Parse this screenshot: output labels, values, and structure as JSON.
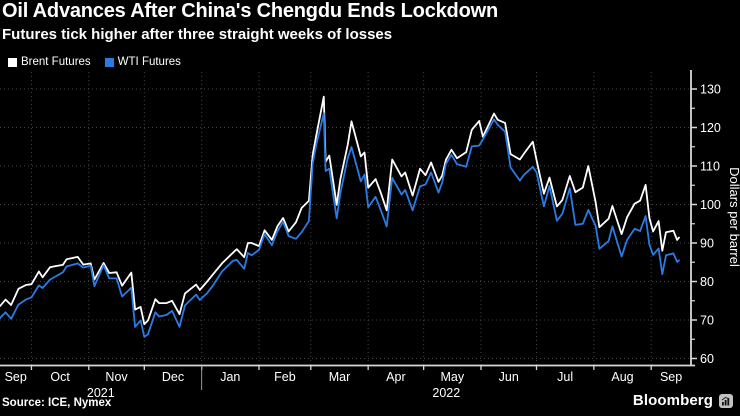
{
  "footer": {
    "source": "Source: ICE, Nymex",
    "brand": "Bloomberg"
  },
  "chart_data": {
    "type": "line",
    "title": "Oil Advances After China's Chengdu Ends Lockdown",
    "subtitle": "Futures tick higher after three straight weeks of losses",
    "ylabel": "Dollars per barrel",
    "ylim": [
      60,
      130
    ],
    "y_ticks": [
      60,
      70,
      80,
      90,
      100,
      110,
      120,
      130
    ],
    "y_minor_ticks": [
      65,
      75,
      85,
      95,
      105,
      115,
      125
    ],
    "x_month_labels": [
      "Sep",
      "Oct",
      "Nov",
      "Dec",
      "Jan",
      "Feb",
      "Mar",
      "Apr",
      "May",
      "Jun",
      "Jul",
      "Aug",
      "Sep"
    ],
    "x_year_labels": [
      "2021",
      "2022"
    ],
    "month_starts": [
      "2021-10-01",
      "2021-11-01",
      "2021-12-01",
      "2022-01-01",
      "2022-02-01",
      "2022-03-01",
      "2022-04-01",
      "2022-05-01",
      "2022-06-01",
      "2022-07-01",
      "2022-08-01",
      "2022-09-01"
    ],
    "x_range": [
      "2021-09-14",
      "2022-09-16"
    ],
    "grid": "dotted",
    "legend_position": "top-left",
    "colors": {
      "background": "#000000",
      "grid": "#454545",
      "axis": "#d8d8d8",
      "text": "#ffffff"
    },
    "dates": [
      "2021-09-14",
      "2021-09-17",
      "2021-09-20",
      "2021-09-24",
      "2021-09-28",
      "2021-10-01",
      "2021-10-05",
      "2021-10-07",
      "2021-10-11",
      "2021-10-14",
      "2021-10-18",
      "2021-10-20",
      "2021-10-26",
      "2021-10-29",
      "2021-11-02",
      "2021-11-04",
      "2021-11-09",
      "2021-11-12",
      "2021-11-16",
      "2021-11-19",
      "2021-11-24",
      "2021-11-26",
      "2021-11-29",
      "2021-12-01",
      "2021-12-03",
      "2021-12-07",
      "2021-12-09",
      "2021-12-13",
      "2021-12-16",
      "2021-12-20",
      "2021-12-23",
      "2021-12-29",
      "2021-12-31",
      "2022-01-04",
      "2022-01-07",
      "2022-01-12",
      "2022-01-18",
      "2022-01-20",
      "2022-01-24",
      "2022-01-26",
      "2022-01-28",
      "2022-02-01",
      "2022-02-04",
      "2022-02-08",
      "2022-02-11",
      "2022-02-14",
      "2022-02-17",
      "2022-02-21",
      "2022-02-24",
      "2022-02-28",
      "2022-03-02",
      "2022-03-04",
      "2022-03-08",
      "2022-03-09",
      "2022-03-11",
      "2022-03-15",
      "2022-03-17",
      "2022-03-21",
      "2022-03-23",
      "2022-03-28",
      "2022-03-30",
      "2022-04-01",
      "2022-04-05",
      "2022-04-08",
      "2022-04-11",
      "2022-04-14",
      "2022-04-19",
      "2022-04-21",
      "2022-04-25",
      "2022-04-29",
      "2022-05-02",
      "2022-05-05",
      "2022-05-09",
      "2022-05-11",
      "2022-05-13",
      "2022-05-16",
      "2022-05-19",
      "2022-05-24",
      "2022-05-27",
      "2022-05-31",
      "2022-06-02",
      "2022-06-08",
      "2022-06-10",
      "2022-06-14",
      "2022-06-17",
      "2022-06-22",
      "2022-06-24",
      "2022-06-29",
      "2022-07-01",
      "2022-07-05",
      "2022-07-08",
      "2022-07-12",
      "2022-07-15",
      "2022-07-19",
      "2022-07-22",
      "2022-07-26",
      "2022-07-29",
      "2022-08-02",
      "2022-08-04",
      "2022-08-09",
      "2022-08-11",
      "2022-08-16",
      "2022-08-19",
      "2022-08-23",
      "2022-08-26",
      "2022-08-29",
      "2022-08-31",
      "2022-09-02",
      "2022-09-05",
      "2022-09-07",
      "2022-09-09",
      "2022-09-13",
      "2022-09-15",
      "2022-09-16"
    ],
    "series": [
      {
        "name": "Brent Futures",
        "color": "#ffffff",
        "values": [
          73.6,
          75.3,
          73.9,
          78.1,
          79.1,
          79.3,
          82.6,
          81.1,
          83.7,
          84.0,
          84.3,
          85.8,
          86.4,
          84.4,
          84.7,
          80.5,
          84.8,
          82.2,
          82.4,
          78.9,
          82.3,
          72.7,
          73.4,
          68.9,
          69.9,
          75.4,
          74.4,
          74.4,
          75.0,
          71.5,
          76.9,
          79.2,
          77.8,
          80.0,
          81.8,
          84.7,
          87.5,
          88.4,
          86.3,
          90.0,
          90.0,
          89.2,
          93.3,
          90.8,
          94.4,
          96.5,
          93.0,
          95.4,
          99.1,
          101.0,
          112.9,
          118.1,
          128.0,
          111.1,
          112.7,
          99.9,
          106.6,
          115.6,
          121.6,
          112.5,
          113.5,
          104.4,
          106.6,
          102.8,
          98.5,
          111.7,
          107.3,
          108.3,
          102.3,
          109.3,
          107.6,
          110.9,
          105.9,
          107.5,
          111.6,
          114.2,
          112.0,
          113.6,
          119.4,
          121.7,
          117.6,
          123.6,
          122.0,
          121.2,
          113.1,
          111.7,
          113.1,
          116.3,
          111.6,
          102.8,
          107.0,
          99.5,
          101.2,
          107.4,
          103.2,
          104.4,
          110.0,
          100.5,
          94.1,
          96.3,
          99.6,
          92.3,
          96.7,
          100.2,
          101.0,
          105.1,
          96.5,
          93.0,
          95.7,
          88.0,
          92.8,
          93.2,
          90.8,
          91.4
        ]
      },
      {
        "name": "WTI Futures",
        "color": "#2B7BE4",
        "values": [
          70.5,
          72.0,
          70.3,
          74.0,
          75.3,
          75.9,
          79.0,
          78.3,
          80.5,
          81.3,
          82.4,
          83.9,
          84.7,
          83.6,
          84.1,
          78.8,
          84.2,
          80.8,
          80.8,
          76.1,
          78.4,
          68.2,
          69.9,
          65.6,
          66.3,
          72.0,
          70.9,
          71.3,
          72.4,
          68.2,
          73.8,
          76.6,
          75.2,
          77.0,
          78.9,
          82.6,
          85.4,
          85.6,
          83.3,
          87.4,
          86.8,
          88.2,
          92.3,
          89.4,
          93.1,
          95.5,
          91.8,
          91.1,
          92.8,
          95.7,
          110.6,
          115.7,
          123.7,
          108.7,
          109.3,
          96.4,
          103.0,
          112.1,
          114.9,
          106.0,
          107.8,
          99.3,
          102.0,
          98.3,
          94.3,
          106.9,
          102.6,
          103.8,
          98.5,
          104.7,
          105.2,
          108.3,
          103.1,
          105.7,
          110.5,
          112.9,
          110.5,
          109.8,
          115.1,
          115.3,
          116.9,
          122.1,
          120.7,
          118.9,
          109.6,
          106.2,
          107.6,
          109.8,
          108.4,
          99.5,
          104.8,
          95.8,
          97.6,
          104.2,
          94.7,
          95.0,
          98.6,
          94.4,
          88.5,
          90.5,
          94.3,
          86.5,
          90.8,
          93.7,
          93.1,
          97.0,
          89.6,
          86.9,
          88.6,
          81.9,
          86.8,
          87.3,
          85.1,
          85.5
        ]
      }
    ]
  }
}
